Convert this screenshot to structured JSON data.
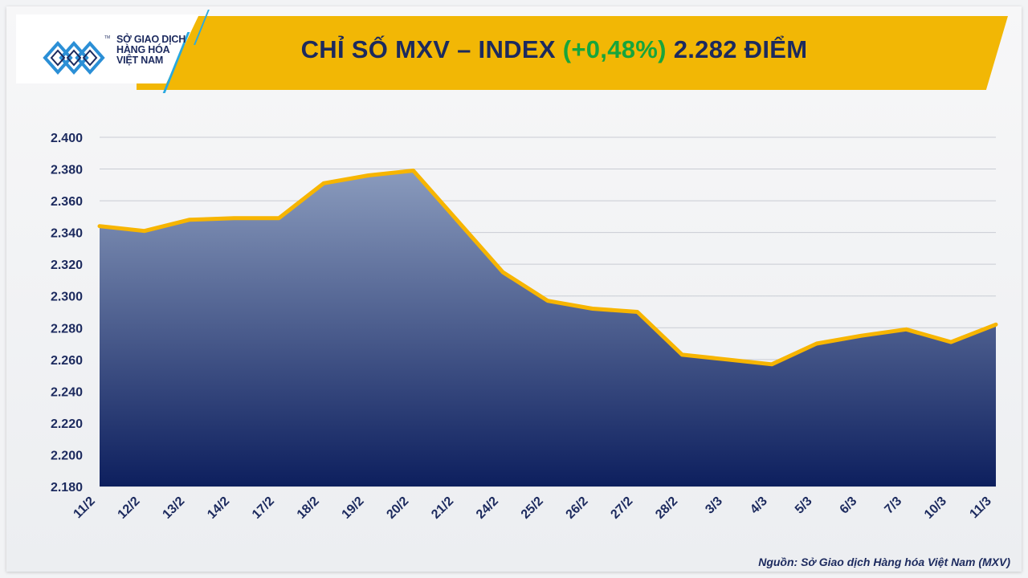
{
  "header": {
    "title_prefix": "CHỈ SỐ MXV – INDEX ",
    "title_change": "(+0,48%)",
    "title_suffix": " 2.282 ĐIỂM",
    "colors": {
      "banner": "#f2b705",
      "title": "#1c2a5e",
      "change": "#17a53c"
    }
  },
  "logo": {
    "line1": "SỞ GIAO DỊCH",
    "line2": "HÀNG HÓA",
    "line3": "VIỆT NAM",
    "tm": "TM",
    "icon": "mxv-logo-icon"
  },
  "source": "Nguồn: Sở Giao dịch Hàng hóa Việt Nam (MXV)",
  "chart_data": {
    "type": "area",
    "categories": [
      "11/2",
      "12/2",
      "13/2",
      "14/2",
      "17/2",
      "18/2",
      "19/2",
      "20/2",
      "21/2",
      "24/2",
      "25/2",
      "26/2",
      "27/2",
      "28/2",
      "3/3",
      "4/3",
      "5/3",
      "6/3",
      "7/3",
      "10/3",
      "11/3"
    ],
    "values": [
      2344,
      2341,
      2348,
      2349,
      2349,
      2371,
      2376,
      2379,
      2347,
      2315,
      2297,
      2292,
      2290,
      2263,
      2260,
      2257,
      2270,
      2275,
      2279,
      2271,
      2282
    ],
    "ylim": [
      2180,
      2400
    ],
    "yticks": [
      2180,
      2200,
      2220,
      2240,
      2260,
      2280,
      2300,
      2320,
      2340,
      2360,
      2380,
      2400
    ],
    "ytick_labels": [
      "2.180",
      "2.200",
      "2.220",
      "2.240",
      "2.260",
      "2.280",
      "2.300",
      "2.320",
      "2.340",
      "2.360",
      "2.380",
      "2.400"
    ],
    "grid": true,
    "colors": {
      "line": "#f7b500",
      "fill_top": "#8a9bbd",
      "fill_bottom": "#0d1f5e",
      "grid": "#c9ccd4",
      "axis_text": "#1c2a5e"
    }
  }
}
